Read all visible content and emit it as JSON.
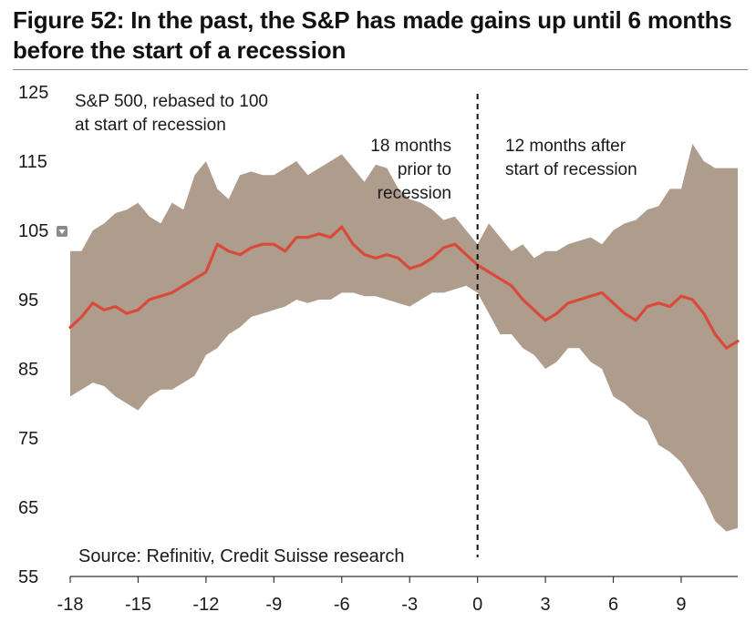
{
  "figure_title": "Figure 52: In the past, the S&P has made gains up until 6 months before the start of a recession",
  "colors": {
    "band": "#ae9c8c",
    "median_line": "#d94a3a",
    "axis": "#333333",
    "divider": "#111111",
    "legend_marker": "#8a8a8a"
  },
  "chart_data": {
    "type": "line",
    "ylabel_note": "S&P 500, rebased to 100 at start of recession",
    "ylabel_note_lines": [
      "S&P 500, rebased to 100",
      "at start of recession"
    ],
    "annotations": {
      "before": [
        "18 months",
        "prior to",
        "recession"
      ],
      "after": [
        "12 months after",
        "start of recession"
      ]
    },
    "source": "Source: Refinitiv, Credit Suisse research",
    "xlim": [
      -18,
      11.5
    ],
    "ylim": [
      55,
      125
    ],
    "x_ticks": [
      -18,
      -15,
      -12,
      -9,
      -6,
      -3,
      0,
      3,
      6,
      9
    ],
    "y_ticks": [
      55,
      65,
      75,
      85,
      95,
      105,
      115,
      125
    ],
    "vertical_marker_x": 0,
    "grid": false,
    "series": [
      {
        "role": "median",
        "points": [
          [
            -18,
            91
          ],
          [
            -17.5,
            92.5
          ],
          [
            -17,
            94.5
          ],
          [
            -16.5,
            93.5
          ],
          [
            -16,
            94
          ],
          [
            -15.5,
            93
          ],
          [
            -15,
            93.5
          ],
          [
            -14.5,
            95
          ],
          [
            -14,
            95.5
          ],
          [
            -13.5,
            96
          ],
          [
            -13,
            97
          ],
          [
            -12.5,
            98
          ],
          [
            -12,
            99
          ],
          [
            -11.5,
            103
          ],
          [
            -11,
            102
          ],
          [
            -10.5,
            101.5
          ],
          [
            -10,
            102.5
          ],
          [
            -9.5,
            103
          ],
          [
            -9,
            103
          ],
          [
            -8.5,
            102
          ],
          [
            -8,
            104
          ],
          [
            -7.5,
            104
          ],
          [
            -7,
            104.5
          ],
          [
            -6.5,
            104
          ],
          [
            -6,
            105.5
          ],
          [
            -5.5,
            103
          ],
          [
            -5,
            101.5
          ],
          [
            -4.5,
            101
          ],
          [
            -4,
            101.5
          ],
          [
            -3.5,
            101
          ],
          [
            -3,
            99.5
          ],
          [
            -2.5,
            100
          ],
          [
            -2,
            101
          ],
          [
            -1.5,
            102.5
          ],
          [
            -1,
            103
          ],
          [
            -0.5,
            101.5
          ],
          [
            0,
            100
          ],
          [
            0.5,
            99
          ],
          [
            1,
            98
          ],
          [
            1.5,
            97
          ],
          [
            2,
            95
          ],
          [
            2.5,
            93.5
          ],
          [
            3,
            92
          ],
          [
            3.5,
            93
          ],
          [
            4,
            94.5
          ],
          [
            4.5,
            95
          ],
          [
            5,
            95.5
          ],
          [
            5.5,
            96
          ],
          [
            6,
            94.5
          ],
          [
            6.5,
            93
          ],
          [
            7,
            92
          ],
          [
            7.5,
            94
          ],
          [
            8,
            94.5
          ],
          [
            8.5,
            94
          ],
          [
            9,
            95.5
          ],
          [
            9.5,
            95
          ],
          [
            10,
            93
          ],
          [
            10.5,
            90
          ],
          [
            11,
            88
          ],
          [
            11.5,
            89
          ]
        ]
      },
      {
        "role": "band_upper",
        "points": [
          [
            -18,
            102
          ],
          [
            -17.5,
            102
          ],
          [
            -17,
            105
          ],
          [
            -16.5,
            106
          ],
          [
            -16,
            107.5
          ],
          [
            -15.5,
            108
          ],
          [
            -15,
            109
          ],
          [
            -14.5,
            107
          ],
          [
            -14,
            106
          ],
          [
            -13.5,
            109
          ],
          [
            -13,
            108
          ],
          [
            -12.5,
            113
          ],
          [
            -12,
            115
          ],
          [
            -11.5,
            111
          ],
          [
            -11,
            109.5
          ],
          [
            -10.5,
            113
          ],
          [
            -10,
            113.5
          ],
          [
            -9.5,
            113
          ],
          [
            -9,
            113
          ],
          [
            -8.5,
            114
          ],
          [
            -8,
            115
          ],
          [
            -7.5,
            113
          ],
          [
            -7,
            114
          ],
          [
            -6.5,
            115
          ],
          [
            -6,
            116
          ],
          [
            -5.5,
            114
          ],
          [
            -5,
            112
          ],
          [
            -4.5,
            114.5
          ],
          [
            -4,
            114
          ],
          [
            -3.5,
            111
          ],
          [
            -3,
            109.5
          ],
          [
            -2.5,
            109
          ],
          [
            -2,
            108
          ],
          [
            -1.5,
            106.5
          ],
          [
            -1,
            107
          ],
          [
            -0.5,
            105
          ],
          [
            0,
            103
          ],
          [
            0.5,
            106
          ],
          [
            1,
            104
          ],
          [
            1.5,
            102
          ],
          [
            2,
            103
          ],
          [
            2.5,
            101
          ],
          [
            3,
            102
          ],
          [
            3.5,
            102
          ],
          [
            4,
            103
          ],
          [
            4.5,
            103.5
          ],
          [
            5,
            104
          ],
          [
            5.5,
            103
          ],
          [
            6,
            105
          ],
          [
            6.5,
            106
          ],
          [
            7,
            106.5
          ],
          [
            7.5,
            108
          ],
          [
            8,
            108.5
          ],
          [
            8.5,
            111
          ],
          [
            9,
            111
          ],
          [
            9.5,
            117.5
          ],
          [
            10,
            115
          ],
          [
            10.5,
            114
          ],
          [
            11,
            114
          ],
          [
            11.5,
            114
          ]
        ]
      },
      {
        "role": "band_lower",
        "points": [
          [
            -18,
            81
          ],
          [
            -17.5,
            82
          ],
          [
            -17,
            83
          ],
          [
            -16.5,
            82.5
          ],
          [
            -16,
            81
          ],
          [
            -15.5,
            80
          ],
          [
            -15,
            79
          ],
          [
            -14.5,
            81
          ],
          [
            -14,
            82
          ],
          [
            -13.5,
            82
          ],
          [
            -13,
            83
          ],
          [
            -12.5,
            84
          ],
          [
            -12,
            87
          ],
          [
            -11.5,
            88
          ],
          [
            -11,
            90
          ],
          [
            -10.5,
            91
          ],
          [
            -10,
            92.5
          ],
          [
            -9.5,
            93
          ],
          [
            -9,
            93.5
          ],
          [
            -8.5,
            94
          ],
          [
            -8,
            95
          ],
          [
            -7.5,
            94.5
          ],
          [
            -7,
            95
          ],
          [
            -6.5,
            95
          ],
          [
            -6,
            96
          ],
          [
            -5.5,
            96
          ],
          [
            -5,
            95.5
          ],
          [
            -4.5,
            95.5
          ],
          [
            -4,
            95
          ],
          [
            -3.5,
            94.5
          ],
          [
            -3,
            94
          ],
          [
            -2.5,
            95
          ],
          [
            -2,
            96
          ],
          [
            -1.5,
            96
          ],
          [
            -1,
            96.5
          ],
          [
            -0.5,
            97
          ],
          [
            0,
            96
          ],
          [
            0.5,
            93
          ],
          [
            1,
            90
          ],
          [
            1.5,
            90
          ],
          [
            2,
            88
          ],
          [
            2.5,
            87
          ],
          [
            3,
            85
          ],
          [
            3.5,
            86
          ],
          [
            4,
            88
          ],
          [
            4.5,
            88
          ],
          [
            5,
            86
          ],
          [
            5.5,
            85
          ],
          [
            6,
            81
          ],
          [
            6.5,
            80
          ],
          [
            7,
            78.5
          ],
          [
            7.5,
            77.5
          ],
          [
            8,
            74
          ],
          [
            8.5,
            73
          ],
          [
            9,
            71.5
          ],
          [
            9.5,
            69
          ],
          [
            10,
            66.5
          ],
          [
            10.5,
            63
          ],
          [
            11,
            61.5
          ],
          [
            11.5,
            62
          ]
        ]
      }
    ]
  }
}
